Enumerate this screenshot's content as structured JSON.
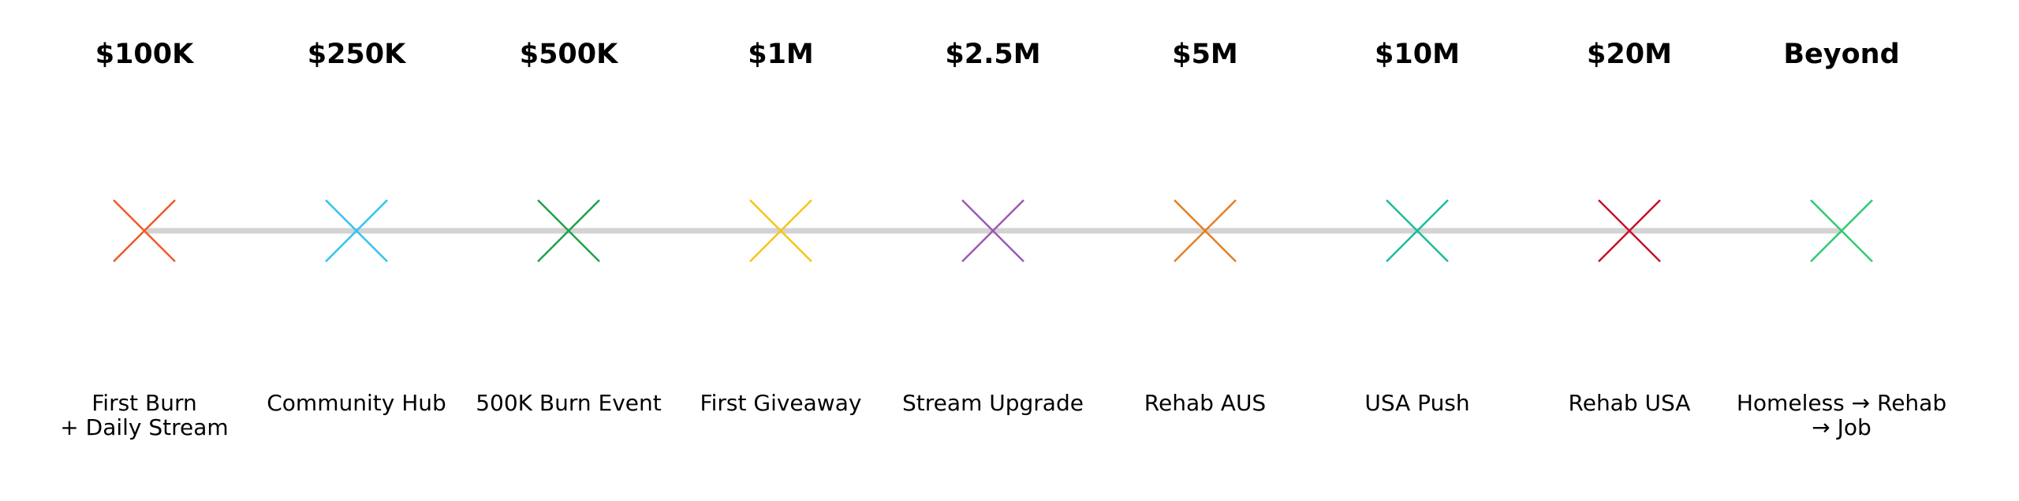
{
  "milestones": [
    {
      "amount": "$100K",
      "description": [
        "First Burn",
        "+ Daily Stream"
      ],
      "color": "#f05a28"
    },
    {
      "amount": "$250K",
      "description": [
        "Community Hub"
      ],
      "color": "#33c3f0"
    },
    {
      "amount": "$500K",
      "description": [
        "500K Burn Event"
      ],
      "color": "#1fa24a"
    },
    {
      "amount": "$1M",
      "description": [
        "First Giveaway"
      ],
      "color": "#f5c518"
    },
    {
      "amount": "$2.5M",
      "description": [
        "Stream Upgrade"
      ],
      "color": "#9b59b6"
    },
    {
      "amount": "$5M",
      "description": [
        "Rehab AUS"
      ],
      "color": "#e67e22"
    },
    {
      "amount": "$10M",
      "description": [
        "USA Push"
      ],
      "color": "#1abc9c"
    },
    {
      "amount": "$20M",
      "description": [
        "Rehab USA"
      ],
      "color": "#c8102e"
    },
    {
      "amount": "Beyond",
      "description": [
        "Homeless → Rehab",
        "→ Job"
      ],
      "color": "#2ecc71"
    }
  ],
  "line_color": "#d3d3d3"
}
